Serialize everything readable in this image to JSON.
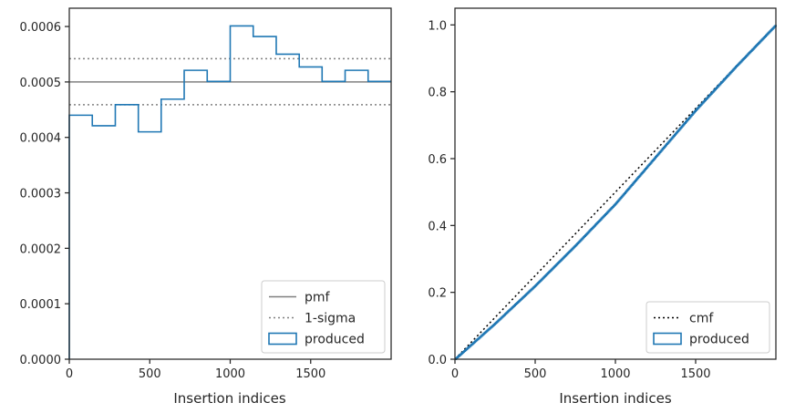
{
  "chart_data": [
    {
      "type": "histogram",
      "title": "",
      "xlabel": "Insertion indices",
      "ylabel": "",
      "xlim": [
        0,
        2000
      ],
      "ylim": [
        0,
        0.000633
      ],
      "grid": false,
      "xticks": [
        0,
        500,
        1000,
        1500
      ],
      "xtick_labels": [
        "0",
        "500",
        "1000",
        "1500"
      ],
      "yticks": [
        0,
        0.0001,
        0.0002,
        0.0003,
        0.0004,
        0.0005,
        0.0006
      ],
      "ytick_labels": [
        "0.0000",
        "0.0001",
        "0.0002",
        "0.0003",
        "0.0004",
        "0.0005",
        "0.0006"
      ],
      "legend_position": "lower-right",
      "bin_edges": [
        0,
        143,
        286,
        429,
        571,
        714,
        857,
        1000,
        1143,
        1286,
        1429,
        1571,
        1714,
        1857,
        2000
      ],
      "series": [
        {
          "name": "pmf",
          "style": "solid",
          "color": "#808080",
          "kind": "hline",
          "values": [
            0.0005
          ]
        },
        {
          "name": "1-sigma",
          "style": "dotted",
          "color": "#808080",
          "kind": "hline",
          "values": [
            0.000459,
            0.000542
          ]
        },
        {
          "name": "produced",
          "style": "step",
          "color": "#1f77b4",
          "kind": "hist",
          "values": [
            0.00044,
            0.000421,
            0.000459,
            0.00041,
            0.000469,
            0.000521,
            0.000501,
            0.000601,
            0.000582,
            0.00055,
            0.000527,
            0.000501,
            0.000521,
            0.000501
          ]
        }
      ]
    },
    {
      "type": "line",
      "title": "",
      "xlabel": "Insertion indices",
      "ylabel": "",
      "xlim": [
        0,
        2000
      ],
      "ylim": [
        0,
        1.05
      ],
      "grid": false,
      "xticks": [
        0,
        500,
        1000,
        1500
      ],
      "xtick_labels": [
        "0",
        "500",
        "1000",
        "1500"
      ],
      "yticks": [
        0,
        0.2,
        0.4,
        0.6,
        0.8,
        1.0
      ],
      "ytick_labels": [
        "0.0",
        "0.2",
        "0.4",
        "0.6",
        "0.8",
        "1.0"
      ],
      "legend_position": "lower-right",
      "series": [
        {
          "name": "cmf",
          "style": "dotted",
          "color": "#000000",
          "x": [
            0,
            2000
          ],
          "y": [
            0,
            1.0
          ]
        },
        {
          "name": "produced",
          "style": "step",
          "color": "#1f77b4",
          "x": [
            0,
            250,
            500,
            750,
            1000,
            1250,
            1500,
            1750,
            2000
          ],
          "y": [
            0,
            0.107,
            0.22,
            0.34,
            0.465,
            0.605,
            0.745,
            0.875,
            1.0
          ]
        }
      ]
    }
  ]
}
